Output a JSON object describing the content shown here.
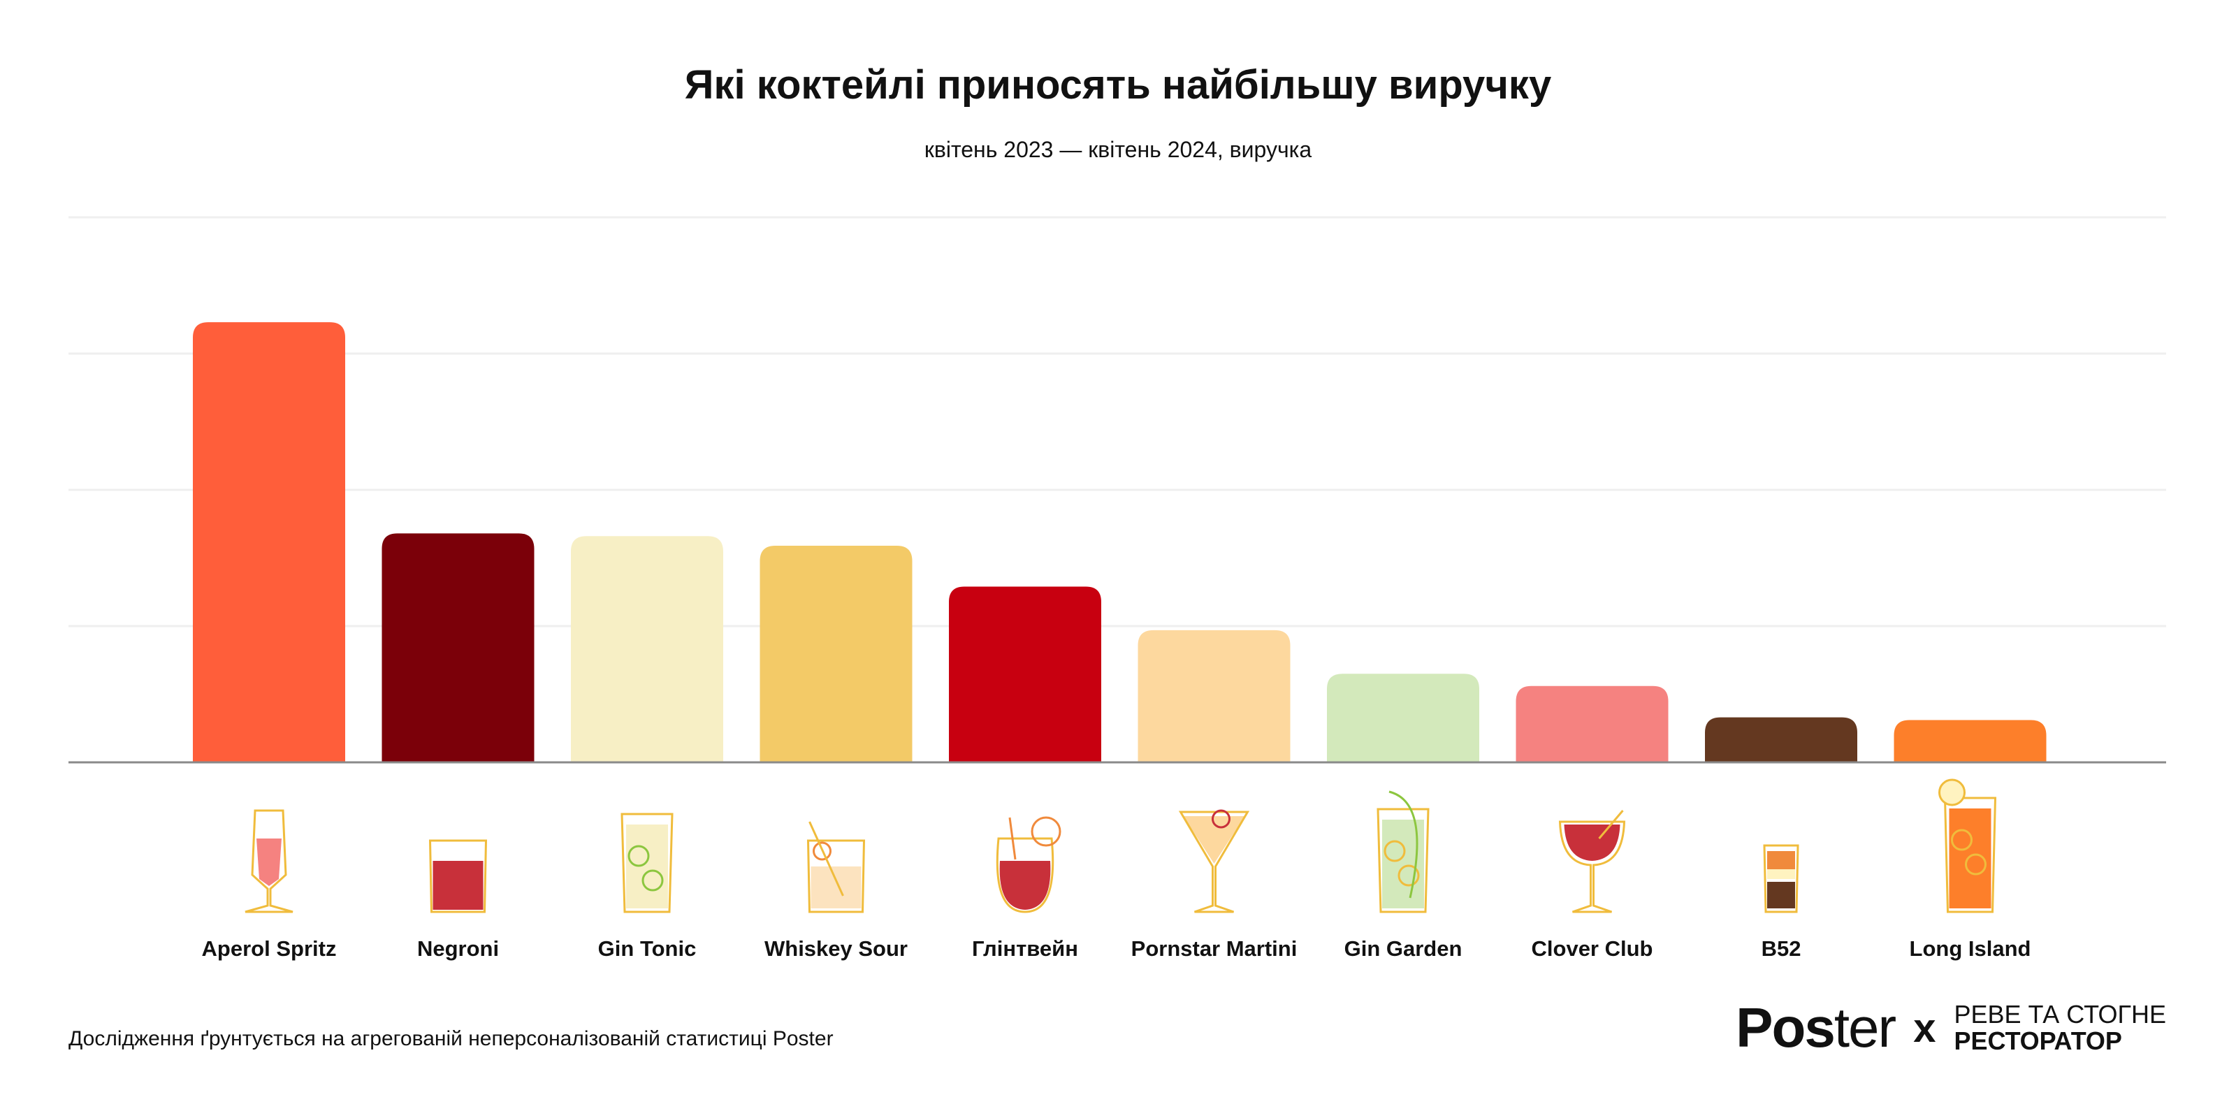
{
  "title": "Які коктейлі приносять найбільшу виручку",
  "subtitle": "квітень 2023 — квітень 2024, виручка",
  "footnote": "Дослідження ґрунтується на агрегованій неперсоналізованій статистиці Poster",
  "logo": {
    "poster_bold": "Pos",
    "poster_light": "ter",
    "x": "x",
    "partner_line1": "РЕВЕ ТА СТОГНЕ",
    "partner_line2": "РЕСТОРАТОР"
  },
  "chart_data": {
    "type": "bar",
    "title": "Які коктейлі приносять найбільшу виручку",
    "subtitle": "квітень 2023 — квітень 2024, виручка",
    "xlabel": "",
    "ylabel": "виручка (relative units; gridlines unlabeled)",
    "ylim": [
      0,
      4
    ],
    "grid": true,
    "categories": [
      "Aperol Spritz",
      "Negroni",
      "Gin Tonic",
      "Whiskey Sour",
      "Глінтвейн",
      "Pornstar Martini",
      "Gin Garden",
      "Clover Club",
      "B52",
      "Long Island"
    ],
    "values": [
      3.23,
      1.68,
      1.66,
      1.59,
      1.29,
      0.97,
      0.65,
      0.56,
      0.33,
      0.31
    ],
    "colors": [
      "#FF5E3A",
      "#7B0009",
      "#F7EFC5",
      "#F3CA67",
      "#C80010",
      "#FDD89E",
      "#D3E9BB",
      "#F58280",
      "#643820",
      "#FD7F2A"
    ],
    "icons": [
      "flute-glass-icon",
      "rocks-glass-icon",
      "highball-glass-icon",
      "rocks-glass-icon",
      "goblet-glass-icon",
      "martini-glass-icon",
      "tall-glass-icon",
      "coupe-glass-icon",
      "shot-glass-icon",
      "tall-glass-icon"
    ]
  }
}
